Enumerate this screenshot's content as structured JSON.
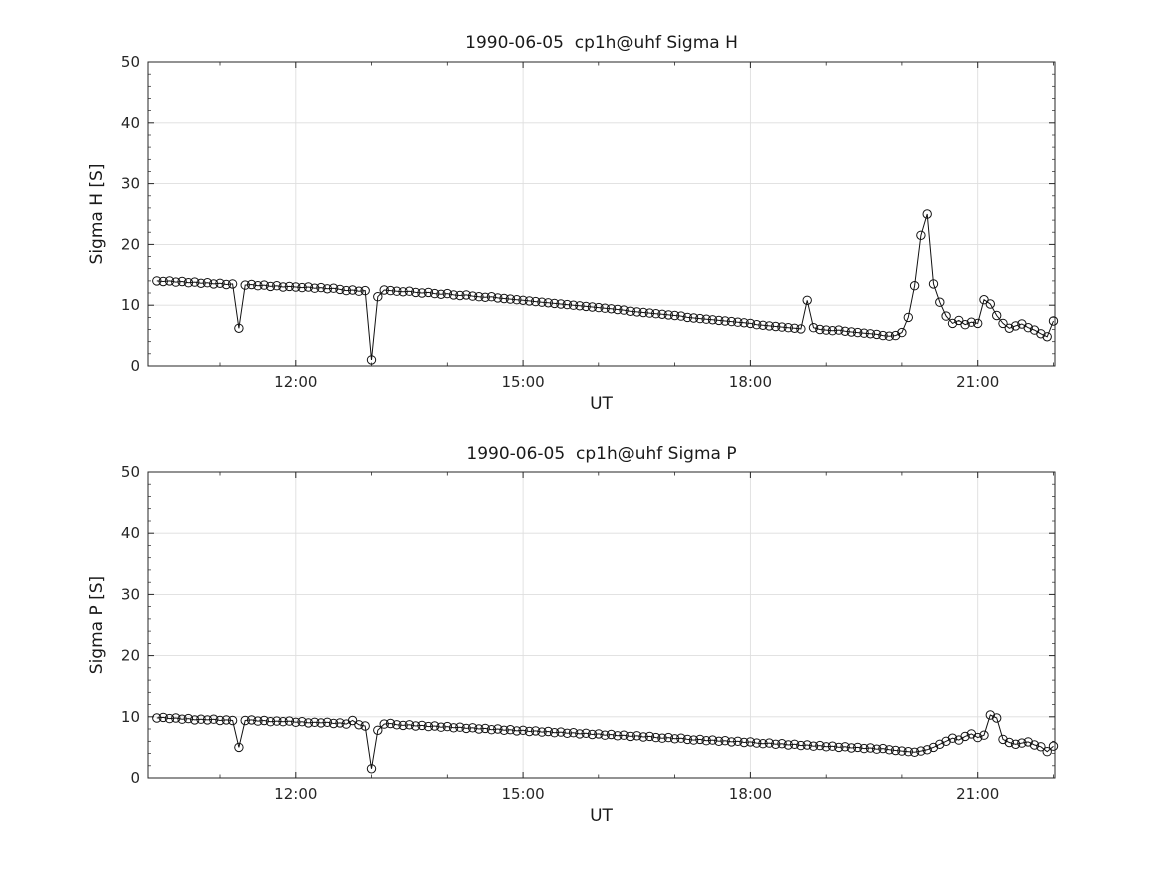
{
  "figure": {
    "background_color": "#ffffff",
    "axes_color": "#262626",
    "grid_color": "#dedede",
    "data_color": "#111111"
  },
  "chart_data": [
    {
      "type": "line",
      "title": "1990-06-05  cp1h@uhf Sigma H",
      "xlabel": "UT",
      "ylabel": "Sigma H [S]",
      "xlim": [
        10.05,
        22.02
      ],
      "ylim": [
        0,
        50
      ],
      "xticks": [
        {
          "value": 12,
          "label": "12:00"
        },
        {
          "value": 15,
          "label": "15:00"
        },
        {
          "value": 18,
          "label": "18:00"
        },
        {
          "value": 21,
          "label": "21:00"
        }
      ],
      "yticks": [
        0,
        10,
        20,
        30,
        40,
        50
      ],
      "grid": true,
      "marker": "open-circle",
      "line_style": "solid",
      "color": "#111111",
      "t_start_hours": 10.1667,
      "t_step_hours": 0.0833333,
      "values": [
        14.0,
        13.9,
        14.0,
        13.8,
        13.9,
        13.7,
        13.8,
        13.6,
        13.7,
        13.5,
        13.6,
        13.4,
        13.5,
        6.2,
        13.3,
        13.4,
        13.2,
        13.3,
        13.1,
        13.2,
        13.0,
        13.1,
        13.0,
        12.9,
        13.0,
        12.8,
        12.9,
        12.7,
        12.8,
        12.6,
        12.4,
        12.5,
        12.3,
        12.4,
        1.0,
        11.4,
        12.5,
        12.4,
        12.3,
        12.2,
        12.3,
        12.1,
        12.0,
        12.1,
        11.9,
        11.8,
        11.9,
        11.7,
        11.6,
        11.7,
        11.5,
        11.4,
        11.3,
        11.4,
        11.2,
        11.1,
        11.0,
        10.9,
        10.8,
        10.7,
        10.6,
        10.5,
        10.4,
        10.3,
        10.2,
        10.1,
        10.0,
        9.9,
        9.8,
        9.7,
        9.6,
        9.5,
        9.4,
        9.3,
        9.2,
        9.0,
        8.9,
        8.8,
        8.7,
        8.6,
        8.5,
        8.4,
        8.3,
        8.2,
        8.0,
        7.9,
        7.8,
        7.7,
        7.6,
        7.5,
        7.4,
        7.3,
        7.2,
        7.1,
        7.0,
        6.8,
        6.7,
        6.6,
        6.5,
        6.4,
        6.3,
        6.2,
        6.1,
        10.8,
        6.3,
        6.0,
        5.9,
        5.8,
        5.9,
        5.7,
        5.6,
        5.5,
        5.4,
        5.3,
        5.2,
        5.0,
        4.9,
        5.0,
        5.5,
        8.0,
        13.2,
        21.5,
        25.0,
        13.5,
        10.5,
        8.2,
        7.0,
        7.5,
        6.8,
        7.2,
        7.0,
        10.9,
        10.2,
        8.3,
        7.0,
        6.2,
        6.6,
        6.9,
        6.3,
        5.9,
        5.3,
        4.8,
        7.4
      ]
    },
    {
      "type": "line",
      "title": "1990-06-05  cp1h@uhf Sigma P",
      "xlabel": "UT",
      "ylabel": "Sigma P [S]",
      "xlim": [
        10.05,
        22.02
      ],
      "ylim": [
        0,
        50
      ],
      "xticks": [
        {
          "value": 12,
          "label": "12:00"
        },
        {
          "value": 15,
          "label": "15:00"
        },
        {
          "value": 18,
          "label": "18:00"
        },
        {
          "value": 21,
          "label": "21:00"
        }
      ],
      "yticks": [
        0,
        10,
        20,
        30,
        40,
        50
      ],
      "grid": true,
      "marker": "open-circle",
      "line_style": "solid",
      "color": "#111111",
      "t_start_hours": 10.1667,
      "t_step_hours": 0.0833333,
      "values": [
        9.8,
        9.9,
        9.7,
        9.8,
        9.6,
        9.7,
        9.5,
        9.6,
        9.5,
        9.6,
        9.4,
        9.5,
        9.4,
        5.0,
        9.4,
        9.5,
        9.3,
        9.4,
        9.2,
        9.3,
        9.2,
        9.3,
        9.1,
        9.2,
        9.0,
        9.1,
        9.0,
        9.1,
        8.9,
        9.0,
        8.8,
        9.4,
        8.7,
        8.5,
        1.5,
        7.8,
        8.8,
        8.9,
        8.7,
        8.6,
        8.7,
        8.5,
        8.6,
        8.4,
        8.5,
        8.3,
        8.4,
        8.2,
        8.3,
        8.1,
        8.2,
        8.0,
        8.1,
        7.9,
        8.0,
        7.8,
        7.9,
        7.7,
        7.8,
        7.6,
        7.7,
        7.5,
        7.6,
        7.4,
        7.5,
        7.3,
        7.4,
        7.2,
        7.3,
        7.1,
        7.2,
        7.0,
        7.1,
        6.9,
        7.0,
        6.8,
        6.9,
        6.7,
        6.8,
        6.6,
        6.5,
        6.6,
        6.4,
        6.5,
        6.3,
        6.2,
        6.3,
        6.1,
        6.2,
        6.0,
        6.1,
        5.9,
        6.0,
        5.8,
        5.9,
        5.7,
        5.6,
        5.7,
        5.5,
        5.6,
        5.4,
        5.5,
        5.3,
        5.4,
        5.2,
        5.3,
        5.1,
        5.2,
        5.0,
        5.1,
        4.9,
        5.0,
        4.8,
        4.9,
        4.7,
        4.8,
        4.6,
        4.5,
        4.4,
        4.3,
        4.2,
        4.4,
        4.6,
        5.0,
        5.5,
        6.0,
        6.5,
        6.2,
        6.8,
        7.2,
        6.6,
        7.0,
        10.3,
        9.8,
        6.3,
        5.8,
        5.5,
        5.7,
        5.9,
        5.4,
        5.1,
        4.3,
        5.2
      ]
    }
  ]
}
